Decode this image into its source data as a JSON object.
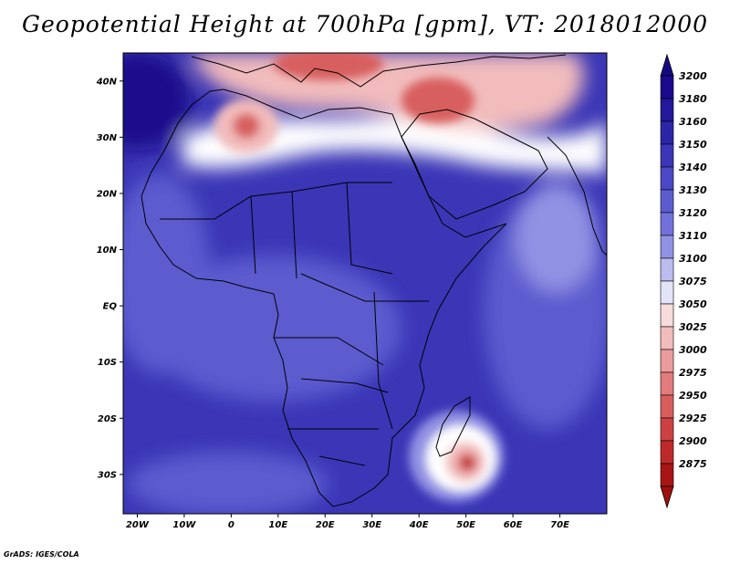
{
  "title": "Geopotential Height at 700hPa [gpm], VT: 2018012000",
  "credit": "GrADS: IGES/COLA",
  "map": {
    "lon_range": [
      -23,
      80
    ],
    "lat_range": [
      -37,
      45
    ],
    "lat_ticks": [
      {
        "value": 40,
        "label": "40N"
      },
      {
        "value": 30,
        "label": "30N"
      },
      {
        "value": 20,
        "label": "20N"
      },
      {
        "value": 10,
        "label": "10N"
      },
      {
        "value": 0,
        "label": "EQ"
      },
      {
        "value": -10,
        "label": "10S"
      },
      {
        "value": -20,
        "label": "20S"
      },
      {
        "value": -30,
        "label": "30S"
      }
    ],
    "lon_ticks": [
      {
        "value": -20,
        "label": "20W"
      },
      {
        "value": -10,
        "label": "10W"
      },
      {
        "value": 0,
        "label": "0"
      },
      {
        "value": 10,
        "label": "10E"
      },
      {
        "value": 20,
        "label": "20E"
      },
      {
        "value": 30,
        "label": "30E"
      },
      {
        "value": 40,
        "label": "40E"
      },
      {
        "value": 50,
        "label": "50E"
      },
      {
        "value": 60,
        "label": "60E"
      },
      {
        "value": 70,
        "label": "70E"
      }
    ]
  },
  "colorbar": {
    "levels": [
      {
        "label": "3200",
        "color": "#1a0a8c"
      },
      {
        "label": "3180",
        "color": "#23179a"
      },
      {
        "label": "3160",
        "color": "#2c26a6"
      },
      {
        "label": "3150",
        "color": "#3a36b6"
      },
      {
        "label": "3140",
        "color": "#4a48c4"
      },
      {
        "label": "3130",
        "color": "#5c5ccf"
      },
      {
        "label": "3120",
        "color": "#7272da"
      },
      {
        "label": "3110",
        "color": "#9292e4"
      },
      {
        "label": "3100",
        "color": "#bcbcef"
      },
      {
        "label": "3075",
        "color": "#e4e4f8"
      },
      {
        "label": "3050",
        "color": "#f7dcdc"
      },
      {
        "label": "3025",
        "color": "#f2bcbc"
      },
      {
        "label": "3000",
        "color": "#ea9c9c"
      },
      {
        "label": "2975",
        "color": "#e27c7c"
      },
      {
        "label": "2950",
        "color": "#d85e5e"
      },
      {
        "label": "2925",
        "color": "#cc4242"
      },
      {
        "label": "2900",
        "color": "#be2a2a"
      },
      {
        "label": "2875",
        "color": "#a91414"
      }
    ],
    "top_arrow_color": "#140a80",
    "bottom_arrow_color": "#a00f0f"
  },
  "field_colors": {
    "deep": "#1a0a8c",
    "base": "#3a36b6",
    "mid": "#5c5ccf",
    "light": "#9292e4",
    "white": "#ffffff",
    "pink": "#f2bcbc",
    "red": "#d85e5e",
    "darkred": "#a91414"
  }
}
